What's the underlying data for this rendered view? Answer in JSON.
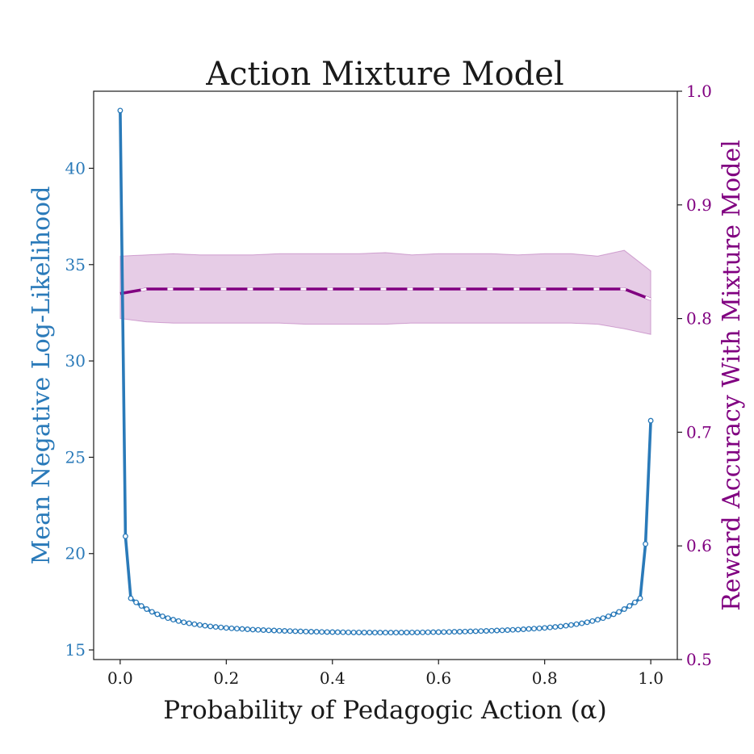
{
  "chart_data": {
    "type": "line",
    "title": "Action Mixture Model",
    "xlabel": "Probability of Pedagogic Action (α)",
    "xlim": [
      -0.05,
      1.05
    ],
    "x_ticks": [
      0.0,
      0.2,
      0.4,
      0.6,
      0.8,
      1.0
    ],
    "x_tick_labels": [
      "0.0",
      "0.2",
      "0.4",
      "0.6",
      "0.8",
      "1.0"
    ],
    "left_axis": {
      "label": "Mean Negative Log-Likelihood",
      "color": "#2a7ab9",
      "ylim": [
        14.5,
        44.0
      ],
      "ticks": [
        15,
        20,
        25,
        30,
        35,
        40
      ],
      "tick_labels": [
        "15",
        "20",
        "25",
        "30",
        "35",
        "40"
      ]
    },
    "right_axis": {
      "label": "Reward Accuracy With Mixture Model",
      "color": "#800080",
      "ylim": [
        0.5,
        1.0
      ],
      "ticks": [
        0.5,
        0.6,
        0.7,
        0.8,
        0.9,
        1.0
      ],
      "tick_labels": [
        "0.5",
        "0.6",
        "0.7",
        "0.8",
        "0.9",
        "1.0"
      ]
    },
    "series": [
      {
        "name": "Mean Negative Log-Likelihood",
        "axis": "left",
        "style": "solid-with-circle-markers",
        "color": "#2a7ab9",
        "x": [
          0.0,
          0.01,
          0.99,
          1.0
        ],
        "y": [
          43.0,
          20.9,
          20.5,
          26.9
        ],
        "interior_curve": {
          "x_start": 0.02,
          "x_end": 0.98,
          "step": 0.01,
          "center": 0.5,
          "min": 15.9,
          "coef_a": 2.4,
          "coef_b": 1.7
        }
      },
      {
        "name": "Reward Accuracy",
        "axis": "right",
        "style": "dashed",
        "color": "#800080",
        "x": [
          0.0,
          0.05,
          0.1,
          0.15,
          0.2,
          0.25,
          0.3,
          0.35,
          0.4,
          0.45,
          0.5,
          0.55,
          0.6,
          0.65,
          0.7,
          0.75,
          0.8,
          0.85,
          0.9,
          0.95,
          1.0
        ],
        "y": [
          0.822,
          0.826,
          0.826,
          0.826,
          0.826,
          0.826,
          0.826,
          0.826,
          0.826,
          0.826,
          0.826,
          0.826,
          0.826,
          0.826,
          0.826,
          0.826,
          0.826,
          0.826,
          0.826,
          0.826,
          0.817
        ],
        "band_upper": [
          0.855,
          0.856,
          0.857,
          0.856,
          0.856,
          0.856,
          0.857,
          0.857,
          0.857,
          0.857,
          0.858,
          0.856,
          0.857,
          0.857,
          0.857,
          0.856,
          0.857,
          0.857,
          0.855,
          0.86,
          0.842
        ],
        "band_lower": [
          0.8,
          0.797,
          0.796,
          0.796,
          0.796,
          0.796,
          0.796,
          0.795,
          0.795,
          0.795,
          0.795,
          0.796,
          0.796,
          0.796,
          0.796,
          0.796,
          0.796,
          0.796,
          0.795,
          0.791,
          0.786
        ]
      }
    ]
  }
}
